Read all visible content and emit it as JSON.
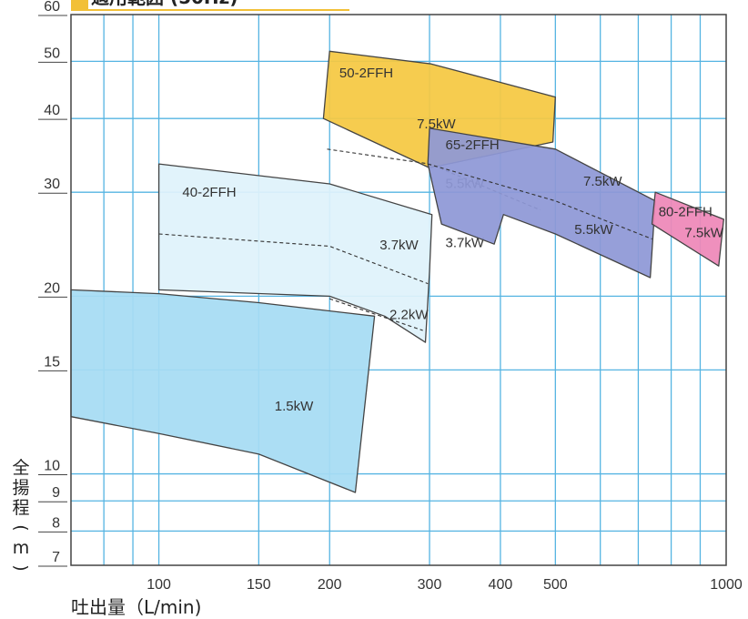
{
  "chart_data": {
    "type": "area",
    "title": "",
    "xlabel": "吐出量（L/min)",
    "ylabel": "全揚程(m)",
    "x_scale": "log",
    "y_scale": "log",
    "xlim": [
      70,
      1000
    ],
    "ylim": [
      7,
      60
    ],
    "x_ticks": [
      100,
      150,
      200,
      300,
      400,
      500,
      1000
    ],
    "y_ticks": [
      7,
      8,
      9,
      10,
      15,
      20,
      30,
      40,
      50,
      60
    ],
    "x_grid": [
      80,
      90,
      100,
      150,
      200,
      300,
      400,
      500,
      600,
      700,
      800,
      900
    ],
    "y_grid": [
      8,
      9,
      10,
      15,
      20,
      30,
      40,
      50
    ],
    "grid": true,
    "colors": {
      "50-2FFH": "#f5c842",
      "65-2FFH": "#8e98d6",
      "40-2FFH": "#dff2fb",
      "1.5kW": "#a6dcf3",
      "80-2FFH": "#ee88b8",
      "grid": "#55b4e2",
      "outline": "#444444"
    },
    "regions": [
      {
        "model": "50-2FFH",
        "polygon": [
          [
            200,
            52
          ],
          [
            302,
            49.5
          ],
          [
            500,
            43.5
          ],
          [
            495,
            36.5
          ],
          [
            300,
            33
          ],
          [
            195,
            40
          ]
        ],
        "curves": [
          {
            "points": [
              [
                198,
                35.5
              ],
              [
                300,
                33.5
              ],
              [
                470,
                28
              ]
            ],
            "dashed": true
          }
        ],
        "labels": [
          {
            "text": "50-2FFH",
            "x": 208,
            "y": 47
          },
          {
            "text": "7.5kW",
            "x": 285,
            "y": 38.5
          },
          {
            "text": "5.5kW",
            "x": 320,
            "y": 30.5
          },
          {
            "text": "3.7kW",
            "x": 320,
            "y": 24.2
          }
        ]
      },
      {
        "model": "65-2FFH",
        "polygon": [
          [
            300,
            38.5
          ],
          [
            500,
            35.5
          ],
          [
            750,
            29
          ],
          [
            735,
            21.5
          ],
          [
            500,
            25.5
          ],
          [
            405,
            27.5
          ],
          [
            390,
            24.5
          ],
          [
            315,
            26.5
          ],
          [
            298,
            33.5
          ]
        ],
        "curves": [
          {
            "points": [
              [
                298,
                33.5
              ],
              [
                500,
                29
              ],
              [
                740,
                25
              ]
            ],
            "dashed": true
          }
        ],
        "labels": [
          {
            "text": "65-2FFH",
            "x": 320,
            "y": 35.5
          },
          {
            "text": "7.5kW",
            "x": 560,
            "y": 30.8
          },
          {
            "text": "5.5kW",
            "x": 540,
            "y": 25.5
          }
        ]
      },
      {
        "model": "80-2FFH",
        "polygon": [
          [
            750,
            30
          ],
          [
            990,
            27
          ],
          [
            970,
            22.5
          ],
          [
            740,
            26.5
          ]
        ],
        "labels": [
          {
            "text": "80-2FFH",
            "x": 760,
            "y": 27.3
          },
          {
            "text": "7.5kW",
            "x": 845,
            "y": 25.2
          }
        ]
      },
      {
        "model": "40-2FFH",
        "polygon": [
          [
            100,
            33.5
          ],
          [
            200,
            31
          ],
          [
            303,
            27.5
          ],
          [
            300,
            22
          ],
          [
            295,
            16.7
          ],
          [
            250,
            18.5
          ],
          [
            200,
            20
          ],
          [
            100,
            20.5
          ]
        ],
        "curves": [
          {
            "points": [
              [
                100,
                25.5
              ],
              [
                200,
                24.3
              ],
              [
                298,
                21
              ]
            ],
            "dashed": true
          },
          {
            "points": [
              [
                200,
                19.8
              ],
              [
                292,
                17.5
              ]
            ],
            "dashed": true
          }
        ],
        "labels": [
          {
            "text": "40-2FFH",
            "x": 110,
            "y": 29.5
          },
          {
            "text": "3.7kW",
            "x": 245,
            "y": 24
          },
          {
            "text": "2.2kW",
            "x": 255,
            "y": 18.3
          }
        ]
      },
      {
        "model": "1.5kW",
        "polygon": [
          [
            70,
            20.5
          ],
          [
            100,
            20.2
          ],
          [
            150,
            19.5
          ],
          [
            240,
            18.5
          ],
          [
            222,
            9.3
          ],
          [
            150,
            10.8
          ],
          [
            100,
            11.7
          ],
          [
            70,
            12.5
          ]
        ],
        "labels": [
          {
            "text": "1.5kW",
            "x": 160,
            "y": 12.8
          }
        ]
      }
    ]
  }
}
